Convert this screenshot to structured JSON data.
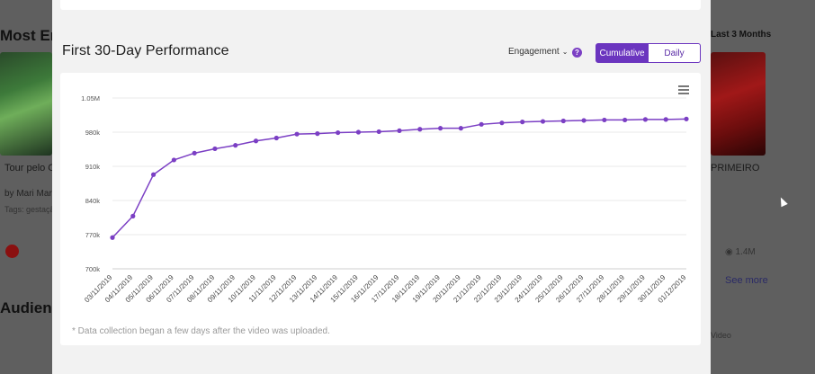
{
  "background": {
    "left_section_title": "Most En",
    "left_video_caption": "Tour pelo C",
    "left_by": "by Mari Mar",
    "left_tags": "Tags: gestação",
    "left_section_title_2": "Audienc",
    "right_period": "Last 3 Months",
    "right_video_caption": "PRIMEIRO",
    "right_views": "1.4M",
    "right_see_more": "See more",
    "right_video_label": "Video",
    "icons": [
      "youtube-icon",
      "eye-icon"
    ]
  },
  "modal": {
    "title": "First 30-Day Performance",
    "dropdown_label": "Engagement",
    "help_label": "?",
    "toggle": {
      "cumulative": "Cumulative",
      "daily": "Daily",
      "active": "cumulative"
    },
    "footnote": "* Data collection began a few days after the video was uploaded.",
    "accent_color": "#6b35bf",
    "line_color": "#7b3fc4"
  },
  "chart_data": {
    "type": "line",
    "title": "First 30-Day Performance",
    "xlabel": "",
    "ylabel": "",
    "y_ticks": [
      "700k",
      "770k",
      "840k",
      "910k",
      "980k",
      "1.05M"
    ],
    "ylim": [
      700000,
      1050000
    ],
    "grid": true,
    "x": [
      "03/11/2019",
      "04/11/2019",
      "05/11/2019",
      "06/11/2019",
      "07/11/2019",
      "08/11/2019",
      "09/11/2019",
      "10/11/2019",
      "11/11/2019",
      "12/11/2019",
      "13/11/2019",
      "14/11/2019",
      "15/11/2019",
      "16/11/2019",
      "17/11/2019",
      "18/11/2019",
      "19/11/2019",
      "20/11/2019",
      "21/11/2019",
      "22/11/2019",
      "23/11/2019",
      "24/11/2019",
      "25/11/2019",
      "26/11/2019",
      "27/11/2019",
      "28/11/2019",
      "29/11/2019",
      "30/11/2019",
      "01/12/2019"
    ],
    "series": [
      {
        "values": [
          764000,
          808000,
          893000,
          923000,
          937000,
          946000,
          953000,
          962000,
          968000,
          976000,
          977000,
          979000,
          980000,
          981000,
          983000,
          986000,
          988000,
          988000,
          996000,
          999000,
          1001000,
          1002000,
          1003000,
          1004000,
          1005000,
          1005000,
          1006000,
          1006000,
          1007000
        ]
      }
    ]
  }
}
